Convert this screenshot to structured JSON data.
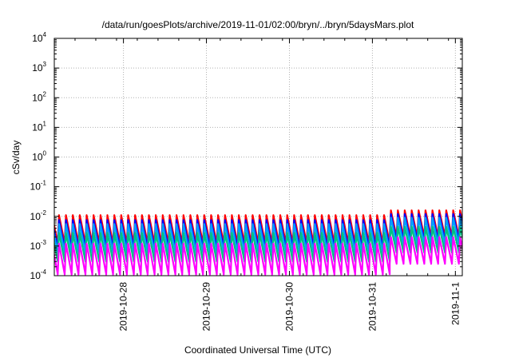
{
  "chart_data": {
    "type": "line",
    "title": "/data/run/goesPlots/archive/2019-11-01/02:00/bryn/../bryn/5daysMars.plot",
    "xlabel": "Coordinated Universal Time (UTC)",
    "ylabel": "cSv/day",
    "yscale": "log",
    "ylim": [
      0.0001,
      10000
    ],
    "xlim": [
      "2019-10-27T04:00",
      "2019-11-01T02:00"
    ],
    "grid": true,
    "y_ticks": [
      {
        "base": "10",
        "exp": "4"
      },
      {
        "base": "10",
        "exp": "3"
      },
      {
        "base": "10",
        "exp": "2"
      },
      {
        "base": "10",
        "exp": "1"
      },
      {
        "base": "10",
        "exp": "0"
      },
      {
        "base": "10",
        "exp": "-1"
      },
      {
        "base": "10",
        "exp": "-2"
      },
      {
        "base": "10",
        "exp": "-3"
      },
      {
        "base": "10",
        "exp": "-4"
      }
    ],
    "x_ticks": [
      {
        "label": "2019-10-28",
        "date": "2019-10-28T00:00"
      },
      {
        "label": "2019-10-29",
        "date": "2019-10-29T00:00"
      },
      {
        "label": "2019-10-30",
        "date": "2019-10-30T00:00"
      },
      {
        "label": "2019-10-31",
        "date": "2019-10-31T00:00"
      },
      {
        "label": "2019-11-1",
        "date": "2019-11-01T00:00"
      }
    ],
    "sawtooth_period_hours": 2,
    "series": [
      {
        "color": "#ff0000",
        "peak": 0.011,
        "trough": 0.0012,
        "peak_late": 0.016,
        "trough_late": 0.002
      },
      {
        "color": "#0000ff",
        "peak": 0.0075,
        "trough": 0.00085,
        "peak_late": 0.012,
        "trough_late": 0.0015
      },
      {
        "color": "#00a0ff",
        "peak": 0.0055,
        "trough": 0.0006,
        "peak_late": 0.009,
        "trough_late": 0.0011
      },
      {
        "color": "#00c080",
        "peak": 0.0028,
        "trough": 0.0003,
        "peak_late": 0.0045,
        "trough_late": 0.0006
      },
      {
        "color": "#ff00ff",
        "peak": 0.0012,
        "trough": 0.00011,
        "peak_late": 0.002,
        "trough_late": 0.00025
      }
    ]
  }
}
